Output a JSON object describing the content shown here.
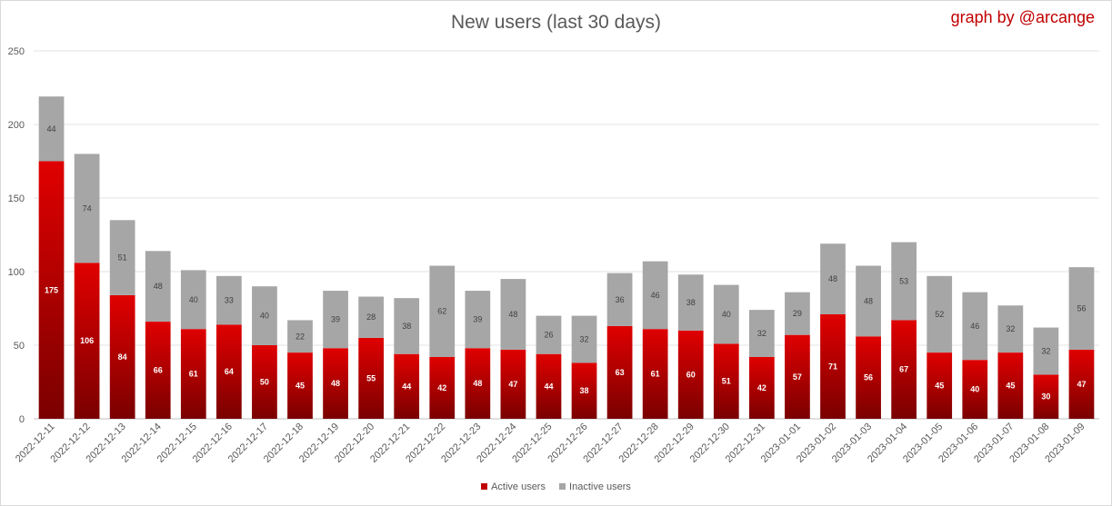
{
  "chart_data": {
    "type": "bar",
    "stacked": true,
    "title": "New users (last 30 days)",
    "credit": "graph by @arcange",
    "categories": [
      "2022-12-11",
      "2022-12-12",
      "2022-12-13",
      "2022-12-14",
      "2022-12-15",
      "2022-12-16",
      "2022-12-17",
      "2022-12-18",
      "2022-12-19",
      "2022-12-20",
      "2022-12-21",
      "2022-12-22",
      "2022-12-23",
      "2022-12-24",
      "2022-12-25",
      "2022-12-26",
      "2022-12-27",
      "2022-12-28",
      "2022-12-29",
      "2022-12-30",
      "2022-12-31",
      "2023-01-01",
      "2023-01-02",
      "2023-01-03",
      "2023-01-04",
      "2023-01-05",
      "2023-01-06",
      "2023-01-07",
      "2023-01-08",
      "2023-01-09"
    ],
    "series": [
      {
        "name": "Active users",
        "color": "#c00000",
        "values": [
          175,
          106,
          84,
          66,
          61,
          64,
          50,
          45,
          48,
          55,
          44,
          42,
          48,
          47,
          44,
          38,
          63,
          61,
          60,
          51,
          42,
          57,
          71,
          56,
          67,
          45,
          40,
          45,
          30,
          47
        ]
      },
      {
        "name": "Inactive users",
        "color": "#a6a6a6",
        "values": [
          44,
          74,
          51,
          48,
          40,
          33,
          40,
          22,
          39,
          28,
          38,
          62,
          39,
          48,
          26,
          32,
          36,
          46,
          38,
          40,
          32,
          29,
          48,
          48,
          53,
          52,
          46,
          32,
          32,
          56
        ]
      }
    ],
    "yticks": [
      0,
      50,
      100,
      150,
      200,
      250
    ],
    "ylim": [
      0,
      250
    ],
    "grid": true,
    "legend_position": "bottom"
  }
}
